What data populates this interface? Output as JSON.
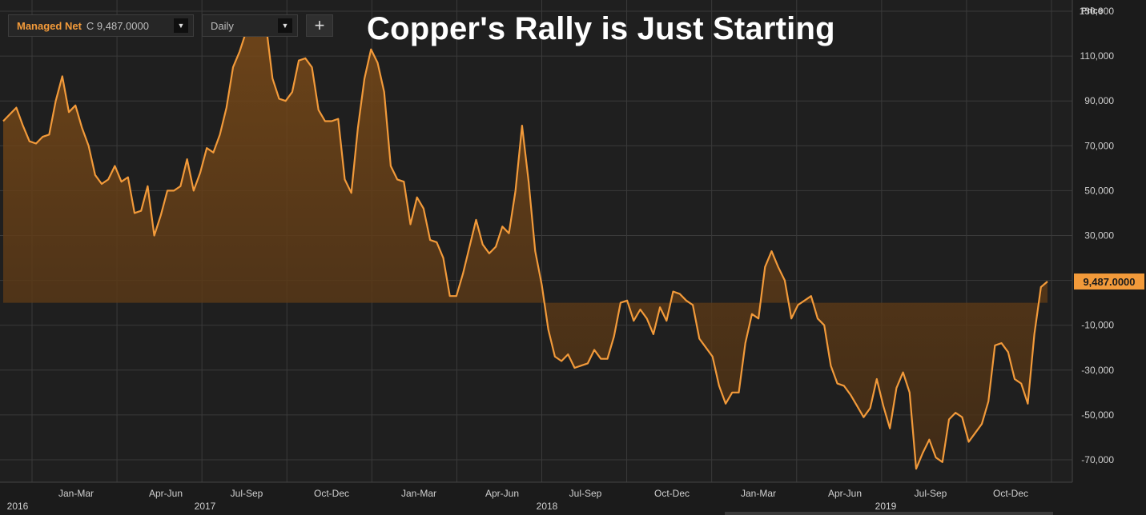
{
  "toolbar": {
    "series_label": "Managed Net",
    "series_value": "C 9,487.0000",
    "period": "Daily",
    "add_label": "+"
  },
  "colors": {
    "line": "#f29a3a",
    "background": "#1b1b1b",
    "grid": "#3a3a3a",
    "axis_text": "#d0d0d0"
  },
  "chart_data": {
    "type": "area",
    "title": "Copper's Rally is Just Starting",
    "ylabel": "Price",
    "ylim": [
      -80000,
      135000
    ],
    "yticks": [
      130000,
      110000,
      90000,
      70000,
      50000,
      30000,
      10000,
      -10000,
      -30000,
      -50000,
      -70000
    ],
    "ytick_labels": [
      "130,000",
      "110,000",
      "90,000",
      "70,000",
      "50,000",
      "30,000",
      "",
      "-10,000",
      "-30,000",
      "-50,000",
      "-70,000"
    ],
    "baseline": 0,
    "grid": true,
    "x_quarter_labels": [
      "Jan-Mar",
      "Apr-Jun",
      "Jul-Sep",
      "Oct-Dec",
      "Jan-Mar",
      "Apr-Jun",
      "Jul-Sep",
      "Oct-Dec",
      "Jan-Mar",
      "Apr-Jun",
      "Jul-Sep",
      "Oct-Dec"
    ],
    "x_year_labels": [
      "2016",
      "2017",
      "2018",
      "2019"
    ],
    "last_value_label": "9,487.0000",
    "last_value": 9487,
    "series": [
      {
        "values": [
          81000,
          84000,
          87000,
          79000,
          72000,
          71000,
          74000,
          75000,
          90000,
          101000,
          85000,
          88000,
          78000,
          70000,
          57000,
          53000,
          55000,
          61000,
          54000,
          56000,
          40000,
          41000,
          52000,
          30000,
          39000,
          50000,
          50000,
          52000,
          64000,
          50000,
          58000,
          69000,
          67000,
          75000,
          87000,
          105000,
          112000,
          121000,
          124000,
          125000,
          124000,
          100000,
          91000,
          90000,
          94000,
          108000,
          109000,
          105000,
          86000,
          81000,
          81000,
          82000,
          55000,
          49000,
          78000,
          100000,
          113000,
          107000,
          94000,
          61000,
          55000,
          54000,
          35000,
          47000,
          42000,
          28000,
          27000,
          20000,
          3000,
          3000,
          13000,
          25000,
          37000,
          26000,
          22000,
          25000,
          34000,
          31000,
          50000,
          79000,
          54000,
          23000,
          8000,
          -12000,
          -24000,
          -26000,
          -23000,
          -29000,
          -28000,
          -27000,
          -21000,
          -25000,
          -25000,
          -15000,
          0,
          1000,
          -8000,
          -3000,
          -7000,
          -14000,
          -2000,
          -8000,
          5000,
          4000,
          1000,
          -1000,
          -16000,
          -20000,
          -24000,
          -37000,
          -45000,
          -40000,
          -40000,
          -18000,
          -5000,
          -7000,
          16000,
          23000,
          16000,
          10000,
          -7000,
          -1000,
          1000,
          3000,
          -7000,
          -10000,
          -28000,
          -36000,
          -37000,
          -41000,
          -46000,
          -51000,
          -47000,
          -34000,
          -46000,
          -56000,
          -38000,
          -31000,
          -40000,
          -74000,
          -67000,
          -61000,
          -69000,
          -71000,
          -52000,
          -49000,
          -51000,
          -62000,
          -58000,
          -54000,
          -44000,
          -19000,
          -18000,
          -22000,
          -34000,
          -36000,
          -45000,
          -14000,
          7000,
          9487
        ]
      }
    ]
  }
}
